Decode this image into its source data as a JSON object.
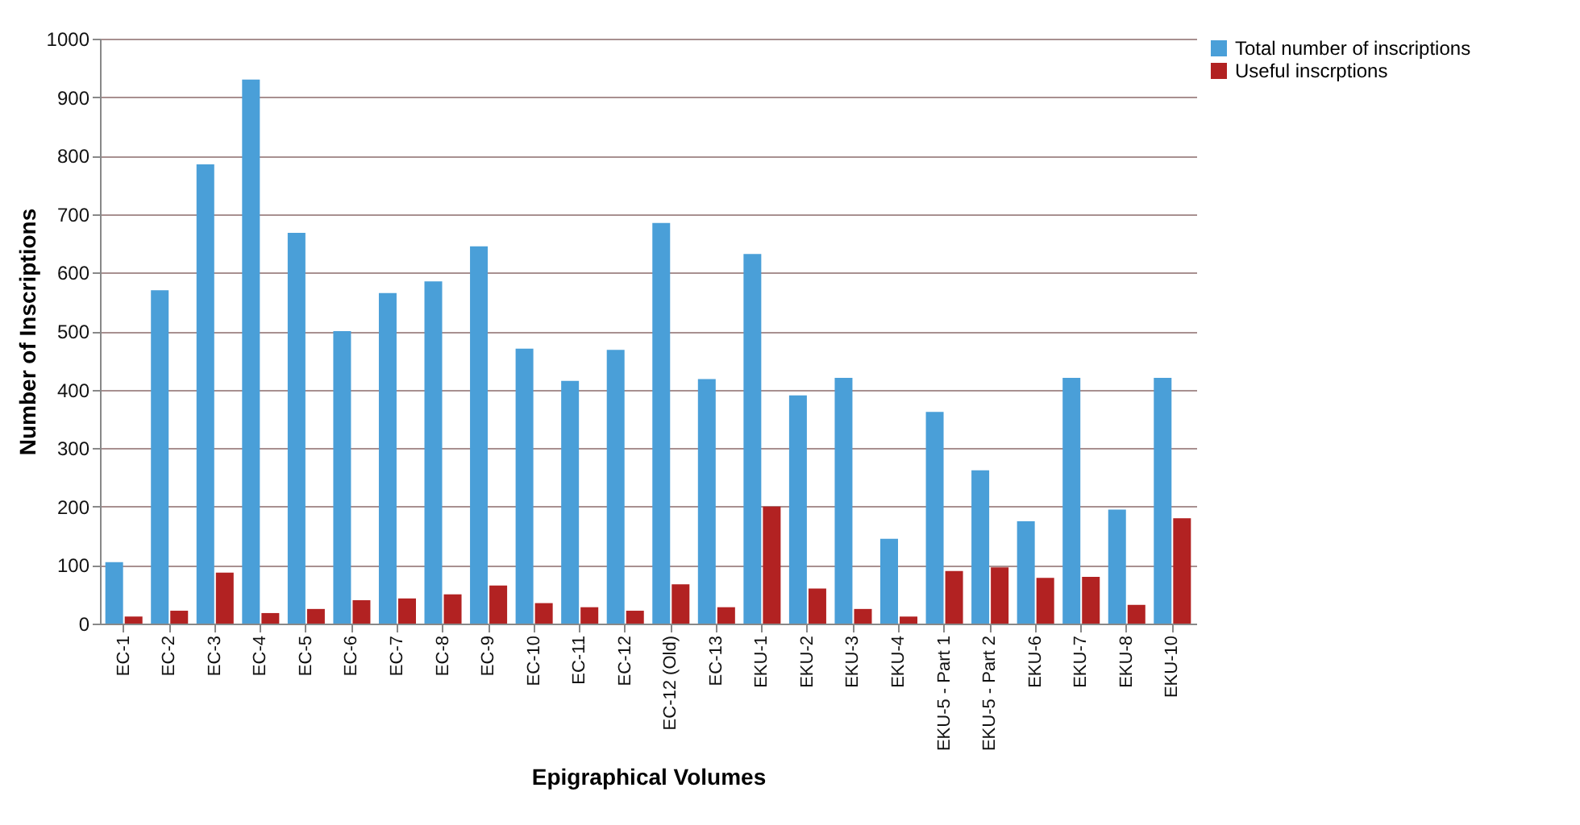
{
  "chart_data": {
    "type": "bar",
    "xlabel": "Epigraphical Volumes",
    "ylabel": "Number of Inscriptions",
    "categories": [
      "EC-1",
      "EC-2",
      "EC-3",
      "EC-4",
      "EC-5",
      "EC-6",
      "EC-7",
      "EC-8",
      "EC-9",
      "EC-10",
      "EC-11",
      "EC-12",
      "EC-12 (Old)",
      "EC-13",
      "EKU-1",
      "EKU-2",
      "EKU-3",
      "EKU-4",
      "EKU-5 - Part 1",
      "EKU-5 - Part 2",
      "EKU-6",
      "EKU-7",
      "EKU-8",
      "EKU-10"
    ],
    "series": [
      {
        "name": "Total number of inscriptions",
        "color": "#4a9fd8",
        "values": [
          105,
          570,
          785,
          930,
          668,
          500,
          565,
          585,
          645,
          470,
          415,
          468,
          685,
          418,
          632,
          390,
          420,
          145,
          362,
          262,
          175,
          420,
          195,
          420
        ]
      },
      {
        "name": "Useful inscrptions",
        "color": "#b22222",
        "values": [
          12,
          22,
          87,
          18,
          25,
          40,
          43,
          50,
          65,
          35,
          28,
          22,
          67,
          28,
          200,
          60,
          25,
          12,
          90,
          96,
          78,
          80,
          32,
          180
        ]
      }
    ],
    "ylim": [
      0,
      1000
    ],
    "yticks": [
      0,
      100,
      200,
      300,
      400,
      500,
      600,
      700,
      800,
      900,
      1000
    ],
    "grid": "y",
    "legend": "right"
  }
}
